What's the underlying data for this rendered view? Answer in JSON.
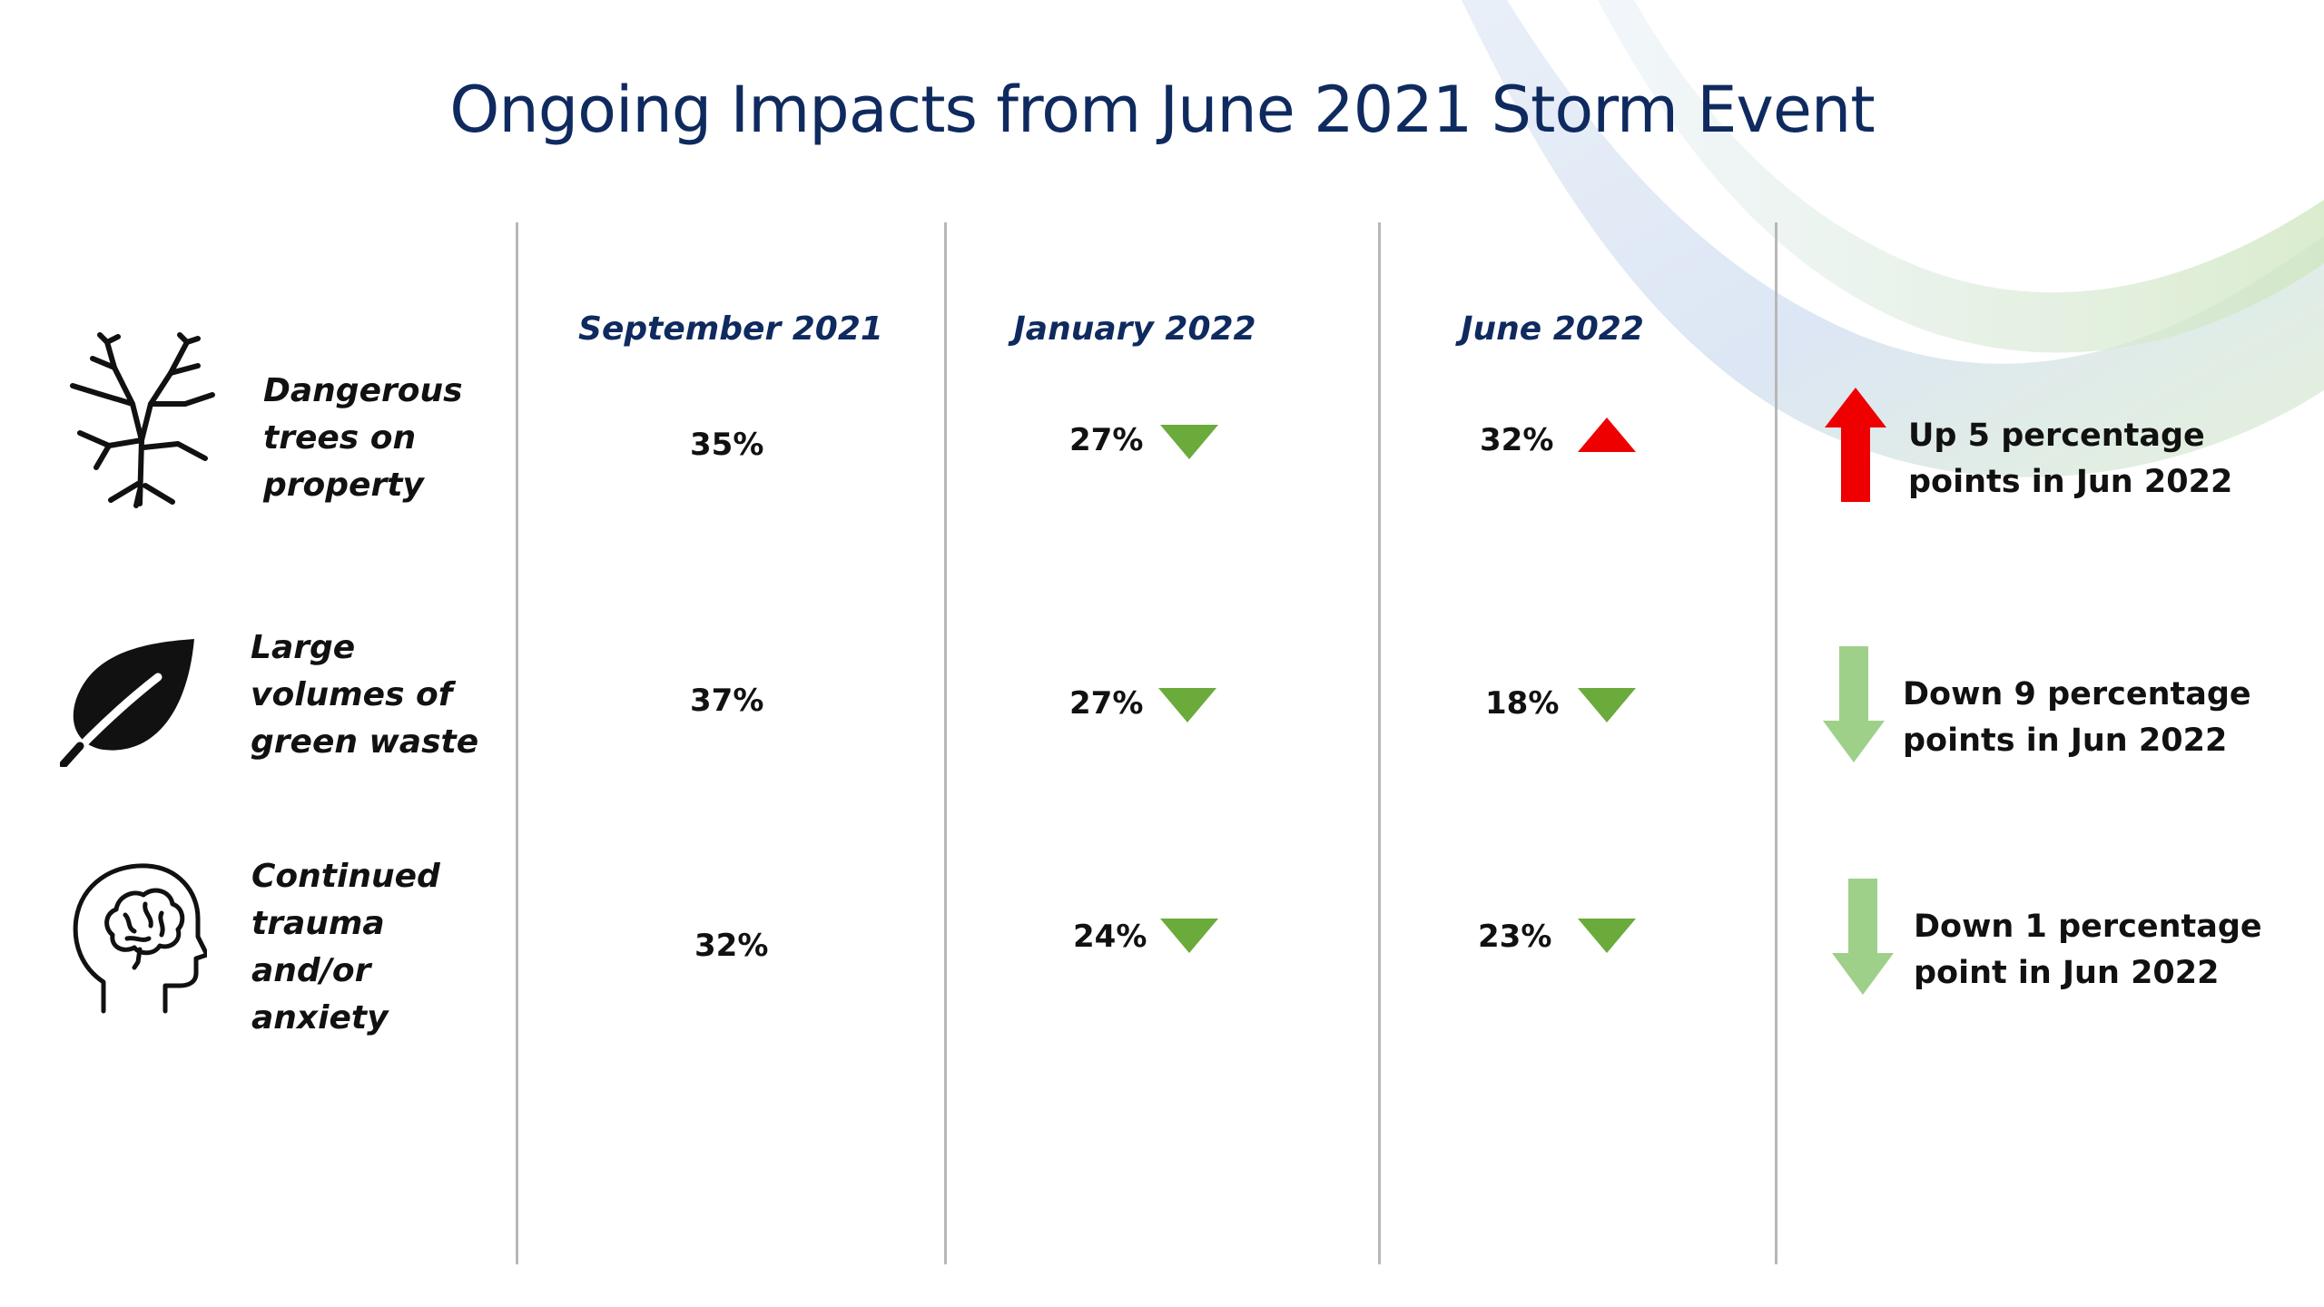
{
  "title": "Ongoing Impacts from June 2021 Storm Event",
  "columns": [
    "September 2021",
    "January 2022",
    "June 2022"
  ],
  "rows": [
    {
      "icon": "dead-tree-icon",
      "label_lines": [
        "Dangerous",
        "trees on",
        "property"
      ],
      "values": [
        "35%",
        "27%",
        "32%"
      ],
      "changes": [
        null,
        "down",
        "up"
      ],
      "trend_direction": "up",
      "trend_color": "#ee0000",
      "trend_lines": [
        "Up 5 percentage",
        "points in Jun 2022"
      ]
    },
    {
      "icon": "leaf-icon",
      "label_lines": [
        "Large",
        "volumes of",
        "green waste"
      ],
      "values": [
        "37%",
        "27%",
        "18%"
      ],
      "changes": [
        null,
        "down",
        "down"
      ],
      "trend_direction": "down",
      "trend_color": "#9fd08a",
      "trend_lines": [
        "Down 9 percentage",
        "points in Jun 2022"
      ]
    },
    {
      "icon": "brain-head-icon",
      "label_lines": [
        "Continued",
        "trauma",
        "and/or",
        "anxiety"
      ],
      "values": [
        "32%",
        "24%",
        "23%"
      ],
      "changes": [
        null,
        "down",
        "down"
      ],
      "trend_direction": "down",
      "trend_color": "#9fd08a",
      "trend_lines": [
        "Down 1 percentage",
        "point in Jun 2022"
      ]
    }
  ],
  "colors": {
    "title": "#0f2a5f",
    "decrease": "#6aab3c",
    "increase": "#ee0000"
  }
}
